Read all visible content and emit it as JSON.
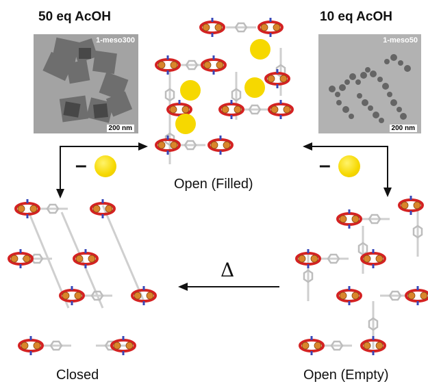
{
  "titles": {
    "left": "50 eq AcOH",
    "right": "10 eq AcOH"
  },
  "tem_images": {
    "left": {
      "tag": "1-meso300",
      "scale": "200 nm"
    },
    "right": {
      "tag": "1-meso50",
      "scale": "200 nm"
    }
  },
  "states": {
    "filled": "Open (Filled)",
    "empty": "Open (Empty)",
    "closed": "Closed"
  },
  "arrows": {
    "heat_symbol": "Δ",
    "minus_symbol": "–"
  },
  "colors": {
    "ring": "#d42222",
    "metal": "#d9852b",
    "linker": "#d8d8d8",
    "nitrogen": "#3747b8",
    "guest": "#f6d800",
    "tem_background": "#9a9a9a"
  }
}
